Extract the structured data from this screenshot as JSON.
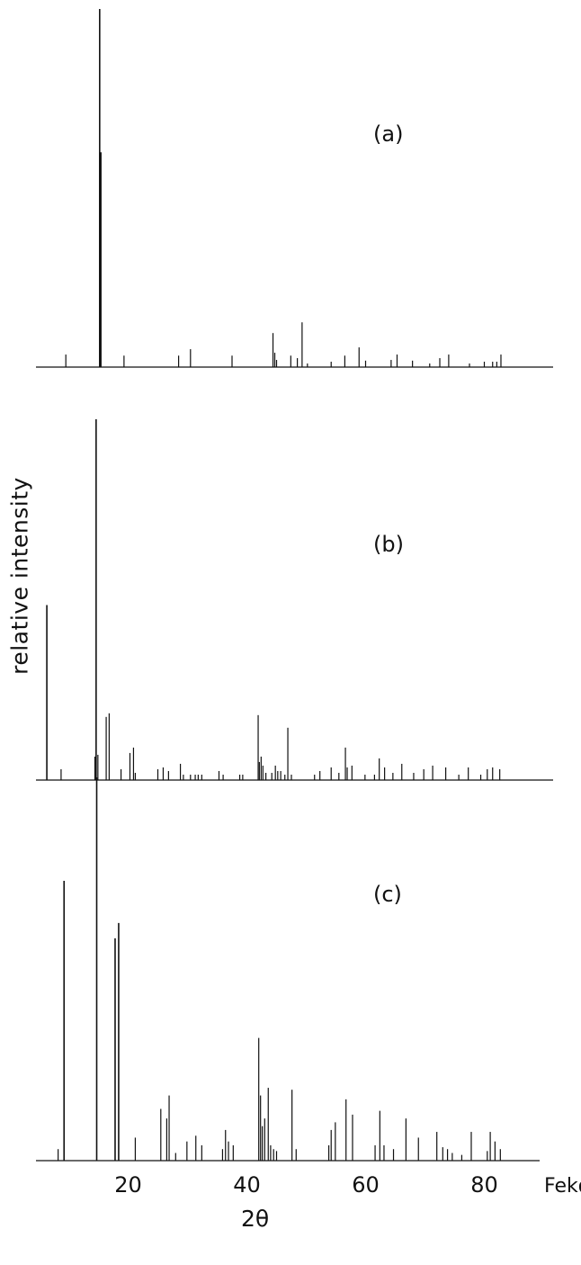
{
  "ylabel": "relative intensity",
  "xlabel": "2θ",
  "x_unit_label": "Fekα",
  "line_color": "#111111",
  "chart_data": [
    {
      "type": "bar",
      "panel": "(a)",
      "x_range": [
        0,
        90
      ],
      "y_range": [
        0,
        100
      ],
      "grid": false,
      "peaks": [
        {
          "x": 9.5,
          "y": 3.5
        },
        {
          "x": 15.2,
          "y": 100
        },
        {
          "x": 15.4,
          "y": 60
        },
        {
          "x": 19.3,
          "y": 3.2
        },
        {
          "x": 28.5,
          "y": 3.2
        },
        {
          "x": 30.5,
          "y": 5
        },
        {
          "x": 37.5,
          "y": 3.2
        },
        {
          "x": 44.4,
          "y": 9.5
        },
        {
          "x": 44.7,
          "y": 4
        },
        {
          "x": 45.0,
          "y": 2
        },
        {
          "x": 47.4,
          "y": 3.2
        },
        {
          "x": 48.5,
          "y": 2.5
        },
        {
          "x": 49.3,
          "y": 12.5
        },
        {
          "x": 50.2,
          "y": 1
        },
        {
          "x": 54.2,
          "y": 1.5
        },
        {
          "x": 56.5,
          "y": 3.2
        },
        {
          "x": 58.9,
          "y": 5.5
        },
        {
          "x": 60.0,
          "y": 1.8
        },
        {
          "x": 64.3,
          "y": 2
        },
        {
          "x": 65.3,
          "y": 3.5
        },
        {
          "x": 67.9,
          "y": 1.8
        },
        {
          "x": 70.8,
          "y": 1
        },
        {
          "x": 72.5,
          "y": 2.5
        },
        {
          "x": 74.0,
          "y": 3.5
        },
        {
          "x": 77.5,
          "y": 1
        },
        {
          "x": 80.0,
          "y": 1.5
        },
        {
          "x": 81.4,
          "y": 1.5
        },
        {
          "x": 82.1,
          "y": 1.5
        },
        {
          "x": 82.8,
          "y": 3.5
        }
      ]
    },
    {
      "type": "bar",
      "panel": "(b)",
      "x_range": [
        0,
        90
      ],
      "y_range": [
        0,
        100
      ],
      "grid": false,
      "peaks": [
        {
          "x": 6.3,
          "y": 48.5
        },
        {
          "x": 8.7,
          "y": 3
        },
        {
          "x": 14.4,
          "y": 6.5
        },
        {
          "x": 14.6,
          "y": 100
        },
        {
          "x": 14.9,
          "y": 7
        },
        {
          "x": 16.3,
          "y": 17.5
        },
        {
          "x": 16.8,
          "y": 18.5
        },
        {
          "x": 18.8,
          "y": 3
        },
        {
          "x": 20.3,
          "y": 7.5
        },
        {
          "x": 20.9,
          "y": 9
        },
        {
          "x": 21.2,
          "y": 2
        },
        {
          "x": 25.0,
          "y": 3
        },
        {
          "x": 25.9,
          "y": 3.5
        },
        {
          "x": 26.8,
          "y": 2.5
        },
        {
          "x": 28.8,
          "y": 4.5
        },
        {
          "x": 29.3,
          "y": 1.5
        },
        {
          "x": 30.5,
          "y": 1.5
        },
        {
          "x": 31.3,
          "y": 1.5
        },
        {
          "x": 31.8,
          "y": 1.5
        },
        {
          "x": 32.4,
          "y": 1.5
        },
        {
          "x": 35.3,
          "y": 2.5
        },
        {
          "x": 36.0,
          "y": 1.5
        },
        {
          "x": 38.8,
          "y": 1.5
        },
        {
          "x": 39.3,
          "y": 1.5
        },
        {
          "x": 41.9,
          "y": 18
        },
        {
          "x": 42.1,
          "y": 5
        },
        {
          "x": 42.4,
          "y": 6.5
        },
        {
          "x": 42.7,
          "y": 4
        },
        {
          "x": 43.2,
          "y": 2
        },
        {
          "x": 44.2,
          "y": 2
        },
        {
          "x": 44.8,
          "y": 4
        },
        {
          "x": 45.2,
          "y": 2.5
        },
        {
          "x": 45.7,
          "y": 2.5
        },
        {
          "x": 46.4,
          "y": 1.5
        },
        {
          "x": 46.9,
          "y": 14.5
        },
        {
          "x": 47.5,
          "y": 1.5
        },
        {
          "x": 51.4,
          "y": 1.5
        },
        {
          "x": 52.3,
          "y": 2.5
        },
        {
          "x": 54.2,
          "y": 3.5
        },
        {
          "x": 55.5,
          "y": 2
        },
        {
          "x": 56.6,
          "y": 9
        },
        {
          "x": 56.9,
          "y": 3.5
        },
        {
          "x": 57.7,
          "y": 4
        },
        {
          "x": 59.9,
          "y": 1.5
        },
        {
          "x": 61.5,
          "y": 1.5
        },
        {
          "x": 62.3,
          "y": 6
        },
        {
          "x": 63.2,
          "y": 3.5
        },
        {
          "x": 64.6,
          "y": 2
        },
        {
          "x": 66.1,
          "y": 4.5
        },
        {
          "x": 68.1,
          "y": 2
        },
        {
          "x": 69.8,
          "y": 3
        },
        {
          "x": 71.3,
          "y": 4
        },
        {
          "x": 73.5,
          "y": 3.5
        },
        {
          "x": 75.7,
          "y": 1.5
        },
        {
          "x": 77.3,
          "y": 3.5
        },
        {
          "x": 79.4,
          "y": 1.5
        },
        {
          "x": 80.5,
          "y": 3
        },
        {
          "x": 81.4,
          "y": 3.5
        },
        {
          "x": 82.6,
          "y": 3
        }
      ]
    },
    {
      "type": "bar",
      "panel": "(c)",
      "x_range": [
        0,
        90
      ],
      "y_range": [
        0,
        100
      ],
      "grid": false,
      "peaks": [
        {
          "x": 8.2,
          "y": 3
        },
        {
          "x": 9.2,
          "y": 73
        },
        {
          "x": 14.7,
          "y": 100
        },
        {
          "x": 17.8,
          "y": 58
        },
        {
          "x": 18.4,
          "y": 62
        },
        {
          "x": 21.2,
          "y": 6
        },
        {
          "x": 25.5,
          "y": 13.5
        },
        {
          "x": 26.5,
          "y": 11
        },
        {
          "x": 26.9,
          "y": 17
        },
        {
          "x": 28.0,
          "y": 2
        },
        {
          "x": 29.9,
          "y": 5
        },
        {
          "x": 31.4,
          "y": 6.5
        },
        {
          "x": 32.4,
          "y": 4
        },
        {
          "x": 35.9,
          "y": 3
        },
        {
          "x": 36.4,
          "y": 8
        },
        {
          "x": 36.9,
          "y": 5
        },
        {
          "x": 37.7,
          "y": 4
        },
        {
          "x": 42.0,
          "y": 32
        },
        {
          "x": 42.3,
          "y": 17
        },
        {
          "x": 42.6,
          "y": 9
        },
        {
          "x": 43.0,
          "y": 11
        },
        {
          "x": 43.6,
          "y": 19
        },
        {
          "x": 44.0,
          "y": 4
        },
        {
          "x": 44.5,
          "y": 3
        },
        {
          "x": 45.0,
          "y": 2.5
        },
        {
          "x": 47.6,
          "y": 18.5
        },
        {
          "x": 48.3,
          "y": 3
        },
        {
          "x": 53.8,
          "y": 4
        },
        {
          "x": 54.2,
          "y": 8
        },
        {
          "x": 54.9,
          "y": 10
        },
        {
          "x": 56.7,
          "y": 16
        },
        {
          "x": 57.8,
          "y": 12
        },
        {
          "x": 61.6,
          "y": 4
        },
        {
          "x": 62.4,
          "y": 13
        },
        {
          "x": 63.1,
          "y": 4
        },
        {
          "x": 64.7,
          "y": 3
        },
        {
          "x": 66.8,
          "y": 11
        },
        {
          "x": 68.9,
          "y": 6
        },
        {
          "x": 72.0,
          "y": 7.5
        },
        {
          "x": 73.0,
          "y": 3.5
        },
        {
          "x": 73.8,
          "y": 3
        },
        {
          "x": 74.6,
          "y": 2
        },
        {
          "x": 76.2,
          "y": 1.5
        },
        {
          "x": 77.8,
          "y": 7.5
        },
        {
          "x": 80.5,
          "y": 2.5
        },
        {
          "x": 81.0,
          "y": 7.5
        },
        {
          "x": 81.8,
          "y": 5
        },
        {
          "x": 82.7,
          "y": 3
        }
      ],
      "x_ticks": [
        20,
        40,
        60,
        80
      ]
    }
  ]
}
